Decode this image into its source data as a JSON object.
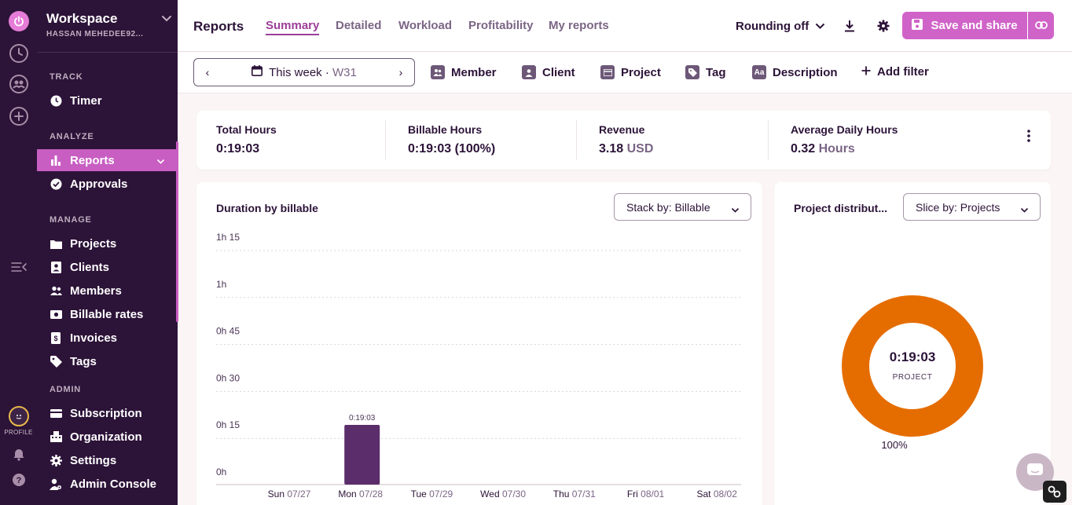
{
  "sidebar": {
    "workspace": "Workspace",
    "user": "HASSAN MEHEDEE92...",
    "profile_label": "PROFILE",
    "sections": {
      "track": "TRACK",
      "analyze": "ANALYZE",
      "manage": "MANAGE",
      "admin": "ADMIN"
    },
    "items": {
      "timer": "Timer",
      "reports": "Reports",
      "approvals": "Approvals",
      "projects": "Projects",
      "clients": "Clients",
      "members": "Members",
      "billable_rates": "Billable rates",
      "invoices": "Invoices",
      "tags": "Tags",
      "subscription": "Subscription",
      "organization": "Organization",
      "settings": "Settings",
      "admin_console": "Admin Console"
    }
  },
  "header": {
    "title": "Reports",
    "tabs": {
      "summary": "Summary",
      "detailed": "Detailed",
      "workload": "Workload",
      "profitability": "Profitability",
      "my_reports": "My reports"
    },
    "rounding": "Rounding off",
    "save_share": "Save and share"
  },
  "filters": {
    "date_range": "This week",
    "week": "W31",
    "member": "Member",
    "client": "Client",
    "project": "Project",
    "tag": "Tag",
    "description": "Description",
    "add_filter": "Add filter"
  },
  "summary": {
    "total_hours_label": "Total Hours",
    "total_hours": "0:19:03",
    "billable_hours_label": "Billable Hours",
    "billable_hours": "0:19:03 (100%)",
    "revenue_label": "Revenue",
    "revenue_value": "3.18",
    "revenue_unit": "USD",
    "avg_daily_label": "Average Daily Hours",
    "avg_daily_value": "0.32",
    "avg_daily_unit": "Hours"
  },
  "bar_panel": {
    "title": "Duration by billable",
    "stack_by": "Stack by: Billable"
  },
  "pie_panel": {
    "title": "Project distribut...",
    "slice_by": "Slice by: Projects"
  },
  "colors": {
    "sidebar_bg": "#2c1338",
    "accent": "#c85ec2",
    "bar": "#5b2d6b",
    "donut": "#e56d00"
  },
  "chart_data": [
    {
      "type": "bar",
      "title": "Duration by billable",
      "categories": [
        {
          "day": "Sun",
          "date": "07/27"
        },
        {
          "day": "Mon",
          "date": "07/28"
        },
        {
          "day": "Tue",
          "date": "07/29"
        },
        {
          "day": "Wed",
          "date": "07/30"
        },
        {
          "day": "Thu",
          "date": "07/31"
        },
        {
          "day": "Fri",
          "date": "08/01"
        },
        {
          "day": "Sat",
          "date": "08/02"
        }
      ],
      "values_minutes": [
        0,
        19.05,
        0,
        0,
        0,
        0,
        0
      ],
      "data_labels": [
        "",
        "0:19:03",
        "",
        "",
        "",
        "",
        ""
      ],
      "y_ticks": [
        {
          "minutes": 0,
          "label": "0h"
        },
        {
          "minutes": 15,
          "label": "0h 15"
        },
        {
          "minutes": 30,
          "label": "0h 30"
        },
        {
          "minutes": 45,
          "label": "0h 45"
        },
        {
          "minutes": 60,
          "label": "1h"
        },
        {
          "minutes": 75,
          "label": "1h 15"
        }
      ],
      "ylim": [
        0,
        75
      ],
      "grid": true
    },
    {
      "type": "pie",
      "title": "Project distribution",
      "slices": [
        {
          "label": "PROJECT",
          "value": 100,
          "percent_label": "100%",
          "center_value": "0:19:03"
        }
      ]
    }
  ]
}
